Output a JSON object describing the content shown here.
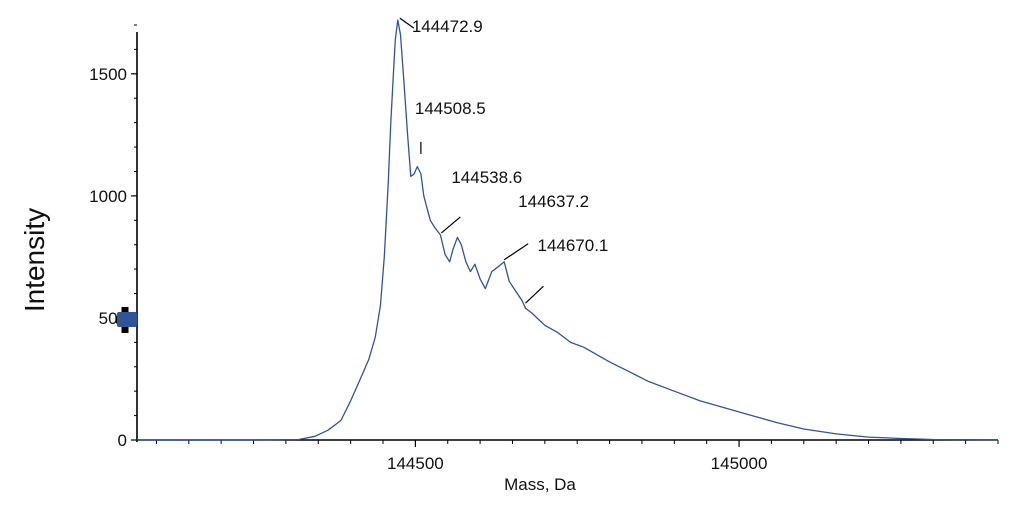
{
  "chart_data": {
    "type": "line",
    "title": "",
    "xlabel": "Mass, Da",
    "ylabel": "Intensity",
    "xlim": [
      144070,
      145400
    ],
    "ylim": [
      0,
      1700
    ],
    "x_ticks": [
      {
        "value": 144500,
        "label": "144500"
      },
      {
        "value": 145000,
        "label": "145000"
      }
    ],
    "y_ticks": [
      {
        "value": 0,
        "label": "0"
      },
      {
        "value": 500,
        "label": "500"
      },
      {
        "value": 1000,
        "label": "1000"
      },
      {
        "value": 1500,
        "label": "1500"
      }
    ],
    "line_color": "#2f5597",
    "cursor_color": "#2f5597",
    "cursor_y_value": 500,
    "grid": false,
    "legend": "none",
    "series": [
      {
        "values": [
          [
            144070,
            0
          ],
          [
            144250,
            0
          ],
          [
            144320,
            2
          ],
          [
            144345,
            15
          ],
          [
            144365,
            40
          ],
          [
            144385,
            80
          ],
          [
            144400,
            160
          ],
          [
            144415,
            250
          ],
          [
            144428,
            330
          ],
          [
            144438,
            420
          ],
          [
            144446,
            550
          ],
          [
            144452,
            750
          ],
          [
            144458,
            1050
          ],
          [
            144462,
            1300
          ],
          [
            144466,
            1500
          ],
          [
            144469,
            1640
          ],
          [
            144472.9,
            1720
          ],
          [
            144477,
            1660
          ],
          [
            144482,
            1480
          ],
          [
            144488,
            1250
          ],
          [
            144493,
            1080
          ],
          [
            144498,
            1090
          ],
          [
            144503,
            1120
          ],
          [
            144508.5,
            1090
          ],
          [
            144513,
            1000
          ],
          [
            144518,
            950
          ],
          [
            144523,
            900
          ],
          [
            144530,
            870
          ],
          [
            144538.6,
            840
          ],
          [
            144546,
            760
          ],
          [
            144553,
            730
          ],
          [
            144558,
            780
          ],
          [
            144565,
            830
          ],
          [
            144571,
            800
          ],
          [
            144578,
            730
          ],
          [
            144585,
            690
          ],
          [
            144592,
            720
          ],
          [
            144600,
            660
          ],
          [
            144608,
            620
          ],
          [
            144618,
            690
          ],
          [
            144628,
            710
          ],
          [
            144637.2,
            730
          ],
          [
            144645,
            650
          ],
          [
            144655,
            610
          ],
          [
            144665,
            570
          ],
          [
            144670.1,
            540
          ],
          [
            144680,
            520
          ],
          [
            144700,
            470
          ],
          [
            144720,
            440
          ],
          [
            144740,
            400
          ],
          [
            144760,
            380
          ],
          [
            144780,
            350
          ],
          [
            144800,
            320
          ],
          [
            144830,
            280
          ],
          [
            144860,
            240
          ],
          [
            144900,
            200
          ],
          [
            144940,
            160
          ],
          [
            144980,
            130
          ],
          [
            145020,
            100
          ],
          [
            145060,
            70
          ],
          [
            145100,
            45
          ],
          [
            145150,
            25
          ],
          [
            145200,
            12
          ],
          [
            145250,
            6
          ],
          [
            145300,
            2
          ],
          [
            145400,
            1
          ]
        ]
      }
    ],
    "peak_labels": [
      {
        "mass": 144472.9,
        "label": "144472.9"
      },
      {
        "mass": 144508.5,
        "label": "144508.5"
      },
      {
        "mass": 144538.6,
        "label": "144538.6"
      },
      {
        "mass": 144637.2,
        "label": "144637.2"
      },
      {
        "mass": 144670.1,
        "label": "144670.1"
      }
    ]
  }
}
